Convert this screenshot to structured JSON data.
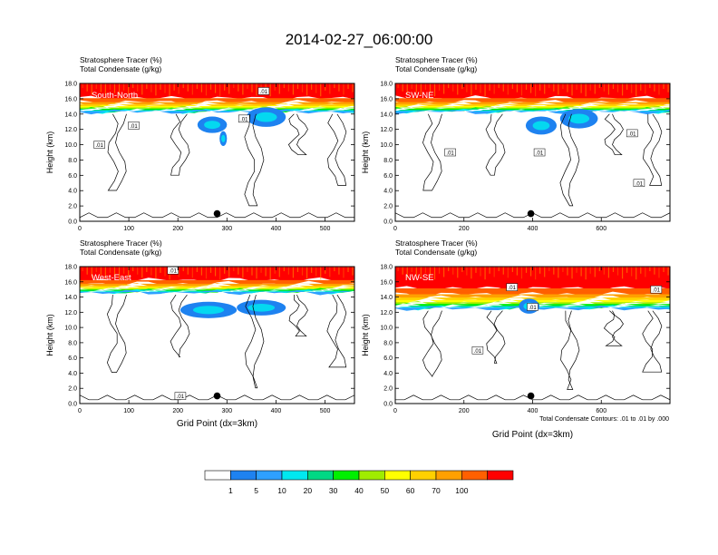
{
  "title": "2014-02-27_06:00:00",
  "colors": {
    "levels": [
      "#ffffff",
      "#1e82f0",
      "#2ea0ff",
      "#00e8f0",
      "#00d884",
      "#00f000",
      "#a0ec00",
      "#ffff00",
      "#ffd000",
      "#ffa000",
      "#ff6000",
      "#ff0000"
    ],
    "contour": "#000000",
    "axis": "#000000"
  },
  "footer_note": "Total Condensate Contours: .01 to .01 by .000",
  "colorbar": {
    "labels": [
      "1",
      "5",
      "10",
      "20",
      "30",
      "40",
      "50",
      "60",
      "70",
      "100"
    ]
  },
  "chart_data": [
    {
      "type": "heatmap",
      "panel": "South-North",
      "label": "South-North",
      "title_line1": "Stratosphere Tracer   (%)",
      "title_line2": "Total Condensate   (g/kg)",
      "ylabel": "Height (km)",
      "xlabel": "",
      "xlim": [
        0,
        560
      ],
      "ylim": [
        0,
        18
      ],
      "xticks": [
        0,
        100,
        200,
        300,
        400,
        500
      ],
      "yticks": [
        0,
        2,
        4,
        6,
        8,
        10,
        12,
        14,
        16,
        18
      ],
      "ytick_labels": [
        "0.0",
        "2.0",
        "4.0",
        "6.0",
        "8.0",
        "10.0",
        "12.0",
        "14.0",
        "16.0",
        "18.0"
      ],
      "tracer_base_km": 14.3,
      "blue_patches": [
        [
          240,
          300,
          12.6,
          1.2
        ],
        [
          340,
          420,
          13.6,
          1.6
        ],
        [
          285,
          300,
          10.8,
          1.0
        ]
      ],
      "contour_labels": [
        [
          110,
          12.5,
          ".01"
        ],
        [
          40,
          10.0,
          ".01"
        ],
        [
          335,
          13.4,
          ".01"
        ],
        [
          375,
          17.0,
          ".01"
        ]
      ],
      "marker": [
        280,
        1.0
      ]
    },
    {
      "type": "heatmap",
      "panel": "SW-NE",
      "label": "SW-NE",
      "title_line1": "Stratosphere Tracer   (%)",
      "title_line2": "Total Condensate   (g/kg)",
      "ylabel": "Height (km)",
      "xlabel": "",
      "xlim": [
        0,
        800
      ],
      "ylim": [
        0,
        18
      ],
      "xticks": [
        0,
        200,
        400,
        600
      ],
      "yticks": [
        0,
        2,
        4,
        6,
        8,
        10,
        12,
        14,
        16,
        18
      ],
      "ytick_labels": [
        "0.0",
        "2.0",
        "4.0",
        "6.0",
        "8.0",
        "10.0",
        "12.0",
        "14.0",
        "16.0",
        "18.0"
      ],
      "tracer_base_km": 14.3,
      "blue_patches": [
        [
          380,
          470,
          12.5,
          1.4
        ],
        [
          480,
          590,
          13.4,
          1.6
        ]
      ],
      "contour_labels": [
        [
          160,
          9.0,
          ".01"
        ],
        [
          420,
          9.0,
          ".01"
        ],
        [
          690,
          11.5,
          ".01"
        ],
        [
          710,
          5.0,
          ".01"
        ]
      ],
      "marker": [
        395,
        1.0
      ]
    },
    {
      "type": "heatmap",
      "panel": "West-East",
      "label": "West-East",
      "title_line1": "Stratosphere Tracer   (%)",
      "title_line2": "Total Condensate   (g/kg)",
      "ylabel": "Height (km)",
      "xlabel": "Grid Point (dx=3km)",
      "xlim": [
        0,
        560
      ],
      "ylim": [
        0,
        18
      ],
      "xticks": [
        0,
        100,
        200,
        300,
        400,
        500
      ],
      "yticks": [
        0,
        2,
        4,
        6,
        8,
        10,
        12,
        14,
        16,
        18
      ],
      "ytick_labels": [
        "0.0",
        "2.0",
        "4.0",
        "6.0",
        "8.0",
        "10.0",
        "12.0",
        "14.0",
        "16.0",
        "18.0"
      ],
      "tracer_base_km": 14.6,
      "blue_patches": [
        [
          205,
          320,
          12.3,
          1.2
        ],
        [
          320,
          420,
          12.6,
          1.1
        ]
      ],
      "contour_labels": [
        [
          190,
          17.5,
          ".01"
        ],
        [
          205,
          1.0,
          ".01"
        ]
      ],
      "marker": [
        280,
        1.0
      ]
    },
    {
      "type": "heatmap",
      "panel": "NW-SE",
      "label": "NW-SE",
      "title_line1": "Stratosphere Tracer   (%)",
      "title_line2": "Total Condensate   (g/kg)",
      "ylabel": "Height (km)",
      "xlabel": "Grid Point (dx=3km)",
      "xlim": [
        0,
        800
      ],
      "ylim": [
        0,
        18
      ],
      "xticks": [
        0,
        200,
        400,
        600
      ],
      "yticks": [
        0,
        2,
        4,
        6,
        8,
        10,
        12,
        14,
        16,
        18
      ],
      "ytick_labels": [
        "0.0",
        "2.0",
        "4.0",
        "6.0",
        "8.0",
        "10.0",
        "12.0",
        "14.0",
        "16.0",
        "18.0"
      ],
      "tracer_base_km": 12.5,
      "blue_patches": [
        [
          360,
          420,
          12.8,
          1.0
        ]
      ],
      "contour_labels": [
        [
          340,
          15.3,
          ".01"
        ],
        [
          400,
          12.7,
          ".01"
        ],
        [
          240,
          7.0,
          ".01"
        ],
        [
          760,
          15.0,
          ".01"
        ]
      ],
      "marker": [
        395,
        1.0
      ]
    }
  ]
}
